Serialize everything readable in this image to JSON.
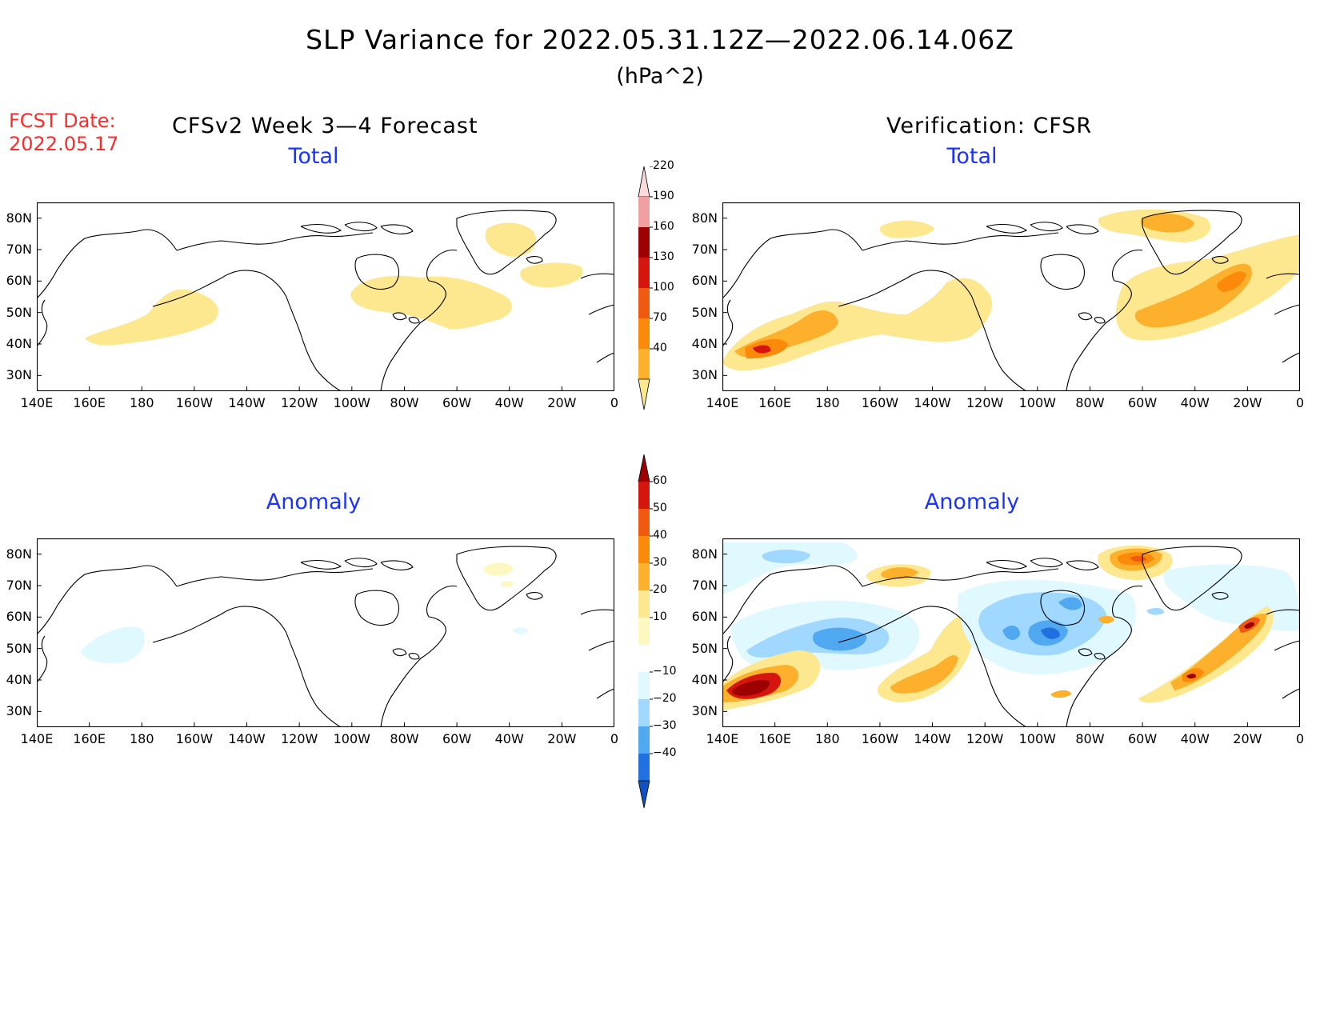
{
  "title": "SLP Variance for 2022.05.31.12Z—2022.06.14.06Z",
  "units": "(hPa^2)",
  "fcst_date_label": "FCST Date:",
  "fcst_date": "2022.05.17",
  "left_header": "CFSv2 Week 3—4 Forecast",
  "right_header": "Verification: CFSR",
  "panel_titles": {
    "total": "Total",
    "anomaly": "Anomaly"
  },
  "lat_labels": [
    "80N",
    "70N",
    "60N",
    "50N",
    "40N",
    "30N"
  ],
  "lon_labels": [
    "140E",
    "160E",
    "180",
    "160W",
    "140W",
    "120W",
    "100W",
    "80W",
    "60W",
    "40W",
    "20W",
    "0"
  ],
  "map_extent": {
    "lon": [
      140,
      360
    ],
    "lat": [
      25,
      85
    ]
  },
  "total_colorbar": {
    "levels": [
      "40",
      "70",
      "100",
      "130",
      "160",
      "190",
      "220"
    ],
    "colors": [
      "#fde890",
      "#fdb02b",
      "#fc8a0a",
      "#f05a10",
      "#d5160f",
      "#9d0000",
      "#f0a0a0",
      "#fbdada"
    ]
  },
  "anomaly_colorbar": {
    "levels": [
      "60",
      "50",
      "40",
      "30",
      "20",
      "10",
      "−10",
      "−20",
      "−30",
      "−40"
    ],
    "colors": [
      "#9d0000",
      "#d5160f",
      "#f05a10",
      "#fc8a0a",
      "#fdb02b",
      "#fde890",
      "#fdf8c0",
      "#ffffff",
      "#e0f8ff",
      "#a0d8ff",
      "#50a8f0",
      "#2070e0",
      "#1050c0"
    ]
  }
}
